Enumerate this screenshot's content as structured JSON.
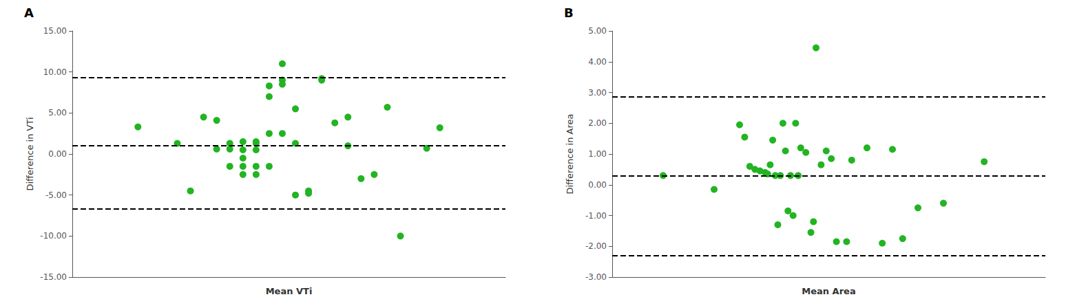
{
  "chart_data": [
    {
      "type": "scatter",
      "title": "A",
      "xlabel": "Mean VTi",
      "ylabel": "Difference in VTi",
      "xlim": [
        5,
        38
      ],
      "ylim": [
        -15,
        15
      ],
      "yticks": [
        {
          "value": -15,
          "label": "-15.00"
        },
        {
          "value": -10,
          "label": "-10.00"
        },
        {
          "value": -5,
          "label": "-5.00"
        },
        {
          "value": 0,
          "label": "0.00"
        },
        {
          "value": 5,
          "label": "5.00"
        },
        {
          "value": 10,
          "label": "10.00"
        },
        {
          "value": 15,
          "label": "15.00"
        }
      ],
      "tick_labels": "y",
      "grid": false,
      "series": [
        {
          "type": "scatter",
          "color": "#22b422",
          "x": [
            10,
            13,
            14,
            15,
            16,
            16,
            17,
            17,
            17,
            18,
            18,
            18,
            18,
            18,
            19,
            19,
            19,
            19,
            19,
            20,
            20,
            20,
            20,
            21,
            21,
            21,
            21,
            22,
            22,
            22,
            23,
            23,
            24,
            24,
            25,
            26,
            26,
            27,
            28,
            29,
            30,
            32,
            33
          ],
          "values": [
            3.3,
            1.3,
            -4.5,
            4.5,
            4.1,
            0.6,
            1.3,
            0.6,
            -1.5,
            1.5,
            0.5,
            -0.5,
            -1.5,
            -2.5,
            1.5,
            1.3,
            0.5,
            -1.5,
            -2.5,
            8.3,
            7.0,
            2.5,
            -1.5,
            11.0,
            9.0,
            8.5,
            2.5,
            1.3,
            5.5,
            -5.0,
            -4.5,
            -4.8,
            9.2,
            9.0,
            3.8,
            4.5,
            1.0,
            -3.0,
            -2.5,
            5.7,
            -10.0,
            0.7,
            3.2
          ]
        },
        {
          "type": "hline",
          "color": "black",
          "line_style": "dashed",
          "values": [
            9.3,
            1.0,
            -6.7
          ]
        }
      ]
    },
    {
      "type": "scatter",
      "title": "B",
      "xlabel": "Mean Area",
      "ylabel": "Difference in Area",
      "xlim": [
        0.5,
        9.0
      ],
      "ylim": [
        -3,
        5
      ],
      "yticks": [
        {
          "value": -3,
          "label": "-3.00"
        },
        {
          "value": -2,
          "label": "-2.00"
        },
        {
          "value": -1,
          "label": "-1.00"
        },
        {
          "value": 0,
          "label": "0.00"
        },
        {
          "value": 1,
          "label": "1.00"
        },
        {
          "value": 2,
          "label": "2.00"
        },
        {
          "value": 3,
          "label": "3.00"
        },
        {
          "value": 4,
          "label": "4.00"
        },
        {
          "value": 5,
          "label": "5.00"
        }
      ],
      "tick_labels": "y",
      "grid": false,
      "series": [
        {
          "type": "scatter",
          "color": "#22b422",
          "x": [
            1.5,
            2.5,
            3.0,
            3.1,
            3.2,
            3.3,
            3.4,
            3.5,
            3.55,
            3.6,
            3.65,
            3.7,
            3.75,
            3.8,
            3.85,
            3.9,
            3.95,
            4.0,
            4.05,
            4.1,
            4.15,
            4.2,
            4.3,
            4.4,
            4.45,
            4.5,
            4.6,
            4.7,
            4.8,
            4.9,
            5.1,
            5.2,
            5.5,
            5.8,
            6.0,
            6.2,
            6.5,
            7.0,
            7.8
          ],
          "values": [
            0.3,
            -0.15,
            1.95,
            1.55,
            0.6,
            0.5,
            0.45,
            0.4,
            0.35,
            0.65,
            1.45,
            0.3,
            -1.3,
            0.3,
            2.0,
            1.1,
            -0.85,
            0.3,
            -1.0,
            2.0,
            0.3,
            1.2,
            1.05,
            -1.55,
            -1.2,
            4.45,
            0.65,
            1.1,
            0.85,
            -1.85,
            -1.85,
            0.8,
            1.2,
            -1.9,
            1.15,
            -1.75,
            -0.75,
            -0.6,
            0.75
          ]
        },
        {
          "type": "hline",
          "color": "black",
          "line_style": "dashed",
          "values": [
            2.85,
            0.3,
            -2.3
          ]
        }
      ]
    }
  ]
}
